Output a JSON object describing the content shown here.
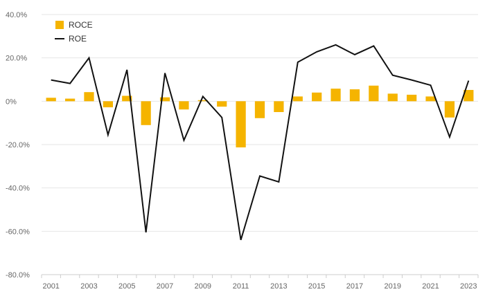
{
  "chart_data": {
    "type": "bar",
    "x": [
      "2001",
      "2002",
      "2003",
      "2004",
      "2005",
      "2006",
      "2007",
      "2008",
      "2009",
      "2010",
      "2011",
      "2012",
      "2013",
      "2014",
      "2015",
      "2016",
      "2017",
      "2018",
      "2019",
      "2020",
      "2021",
      "2022",
      "2023"
    ],
    "x_tick_labels": [
      "2001",
      "2003",
      "2005",
      "2007",
      "2009",
      "2011",
      "2013",
      "2015",
      "2017",
      "2019",
      "2021",
      "2023"
    ],
    "y_tick_labels": [
      "40.0%",
      "20.0%",
      "0%",
      "-20.0%",
      "-40.0%",
      "-60.0%",
      "-80.0%"
    ],
    "ylim": [
      -80,
      40
    ],
    "y_unit": "%",
    "grid": true,
    "legend_position": "top-left",
    "series": [
      {
        "name": "ROCE",
        "kind": "bar",
        "color": "#f5b400",
        "values": [
          1.6,
          1.2,
          4.2,
          -2.8,
          2.5,
          -11.0,
          1.8,
          -3.8,
          0.5,
          -2.5,
          -21.3,
          -7.8,
          -5.0,
          2.2,
          4.0,
          5.8,
          5.5,
          7.2,
          3.5,
          3.0,
          2.2,
          -7.5,
          5.2
        ]
      },
      {
        "name": "ROE",
        "kind": "line",
        "color": "#111111",
        "values": [
          9.8,
          8.2,
          20.0,
          -15.5,
          14.5,
          -60.5,
          13.0,
          -18.0,
          2.2,
          -7.5,
          -64.0,
          -34.5,
          -37.2,
          18.0,
          22.8,
          26.0,
          21.5,
          25.5,
          12.0,
          9.8,
          7.4,
          -16.5,
          9.5
        ]
      }
    ]
  }
}
